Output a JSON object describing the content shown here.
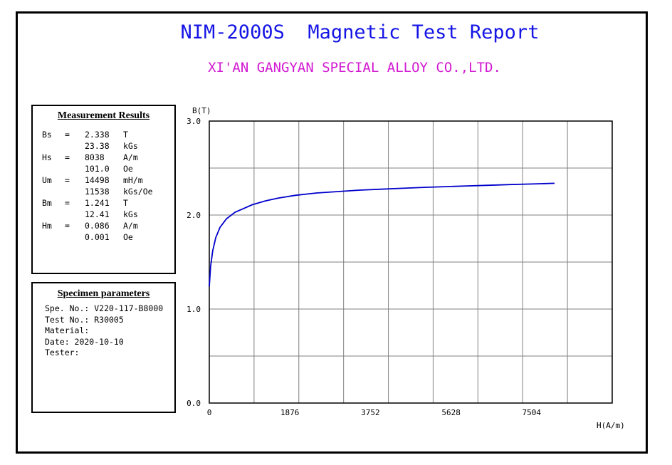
{
  "report": {
    "title": "NIM-2000S  Magnetic Test Report",
    "company": "XI'AN GANGYAN SPECIAL ALLOY CO.,LTD."
  },
  "measurement": {
    "heading": "Measurement Results",
    "rows": [
      {
        "sym": "Bs",
        "eq": "=",
        "val": "2.338",
        "unit": "T"
      },
      {
        "sym": "",
        "eq": "",
        "val": "23.38",
        "unit": "kGs"
      },
      {
        "sym": "Hs",
        "eq": "=",
        "val": "8038",
        "unit": "A/m"
      },
      {
        "sym": "",
        "eq": "",
        "val": "101.0",
        "unit": "Oe"
      },
      {
        "sym": "Um",
        "eq": "=",
        "val": "14498",
        "unit": "mH/m"
      },
      {
        "sym": "",
        "eq": "",
        "val": "11538",
        "unit": "kGs/Oe"
      },
      {
        "sym": "Bm",
        "eq": "=",
        "val": "1.241",
        "unit": "T"
      },
      {
        "sym": "",
        "eq": "",
        "val": "12.41",
        "unit": "kGs"
      },
      {
        "sym": "Hm",
        "eq": "=",
        "val": "0.086",
        "unit": "A/m"
      },
      {
        "sym": "",
        "eq": "",
        "val": "0.001",
        "unit": "Oe"
      }
    ]
  },
  "specimen": {
    "heading": "Specimen parameters",
    "lines": [
      "Spe. No.: V220-117-B8000",
      "Test No.: R30005",
      "Material:",
      "Date: 2020-10-10",
      "Tester:"
    ]
  },
  "chart_data": {
    "type": "line",
    "title": "",
    "xlabel": "H(A/m)",
    "ylabel": "B(T)",
    "xlim": [
      0,
      9380
    ],
    "ylim": [
      0,
      3.0
    ],
    "xticks": [
      0,
      1876,
      3752,
      5628,
      7504
    ],
    "xtick_labels": [
      "0",
      "1876",
      "3752",
      "5628",
      "7504"
    ],
    "yticks": [
      0,
      1.0,
      2.0,
      3.0
    ],
    "ytick_labels": [
      "0.0",
      "1.0",
      "2.0",
      "3.0"
    ],
    "grid": true,
    "grid_cols": 9,
    "grid_rows": 6,
    "line_color": "#0000cc",
    "series": [
      {
        "x": [
          0,
          30,
          80,
          150,
          250,
          400,
          600,
          800,
          1000,
          1300,
          1600,
          2000,
          2500,
          3000,
          3500,
          4000,
          4500,
          5000,
          5500,
          6000,
          6500,
          7000,
          7500,
          8038
        ],
        "y": [
          1.24,
          1.45,
          1.62,
          1.76,
          1.87,
          1.96,
          2.03,
          2.07,
          2.11,
          2.15,
          2.18,
          2.21,
          2.235,
          2.25,
          2.265,
          2.275,
          2.285,
          2.295,
          2.302,
          2.31,
          2.317,
          2.324,
          2.33,
          2.338
        ]
      }
    ]
  }
}
